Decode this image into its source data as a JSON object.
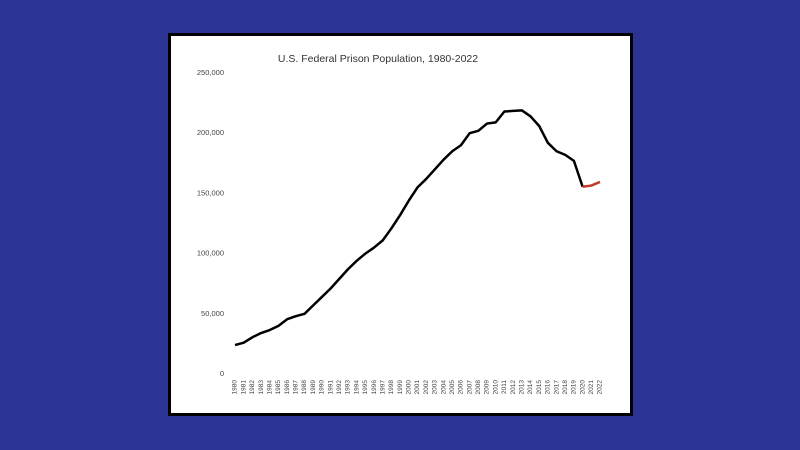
{
  "chart_data": {
    "type": "line",
    "title": "U.S. Federal Prison Population, 1980-2022",
    "x": [
      "1980",
      "1981",
      "1982",
      "1983",
      "1984",
      "1985",
      "1986",
      "1987",
      "1988",
      "1989",
      "1990",
      "1991",
      "1992",
      "1993",
      "1994",
      "1995",
      "1996",
      "1997",
      "1998",
      "1999",
      "2000",
      "2001",
      "2002",
      "2003",
      "2004",
      "2005",
      "2006",
      "2007",
      "2008",
      "2009",
      "2010",
      "2011",
      "2012",
      "2013",
      "2014",
      "2015",
      "2016",
      "2017",
      "2018",
      "2019",
      "2020",
      "2021",
      "2022"
    ],
    "series": [
      {
        "color": "#000000",
        "values": [
          24000,
          26000,
          30500,
          34000,
          36500,
          40000,
          45500,
          48000,
          50000,
          57000,
          64000,
          71000,
          79000,
          87000,
          94000,
          100000,
          105000,
          111000,
          121000,
          132000,
          144000,
          155000,
          162000,
          170000,
          178000,
          185000,
          190000,
          200000,
          202000,
          208000,
          209000,
          218000,
          218500,
          219000,
          214000,
          206000,
          192000,
          185000,
          182000,
          177000,
          155500,
          null,
          null
        ]
      },
      {
        "color": "#c0392b",
        "values": [
          null,
          null,
          null,
          null,
          null,
          null,
          null,
          null,
          null,
          null,
          null,
          null,
          null,
          null,
          null,
          null,
          null,
          null,
          null,
          null,
          null,
          null,
          null,
          null,
          null,
          null,
          null,
          null,
          null,
          null,
          null,
          null,
          null,
          null,
          null,
          null,
          null,
          null,
          null,
          null,
          155500,
          156500,
          159500
        ]
      }
    ],
    "ylim": [
      0,
      250000
    ],
    "yticks": [
      0,
      {
        "value": 50000,
        "label": "50,000"
      },
      {
        "value": 100000,
        "label": "100,000"
      },
      {
        "value": 150000,
        "label": "150,000"
      },
      {
        "value": 200000,
        "label": "200,000"
      },
      {
        "value": 250000,
        "label": "250,000"
      }
    ],
    "grid": false
  }
}
